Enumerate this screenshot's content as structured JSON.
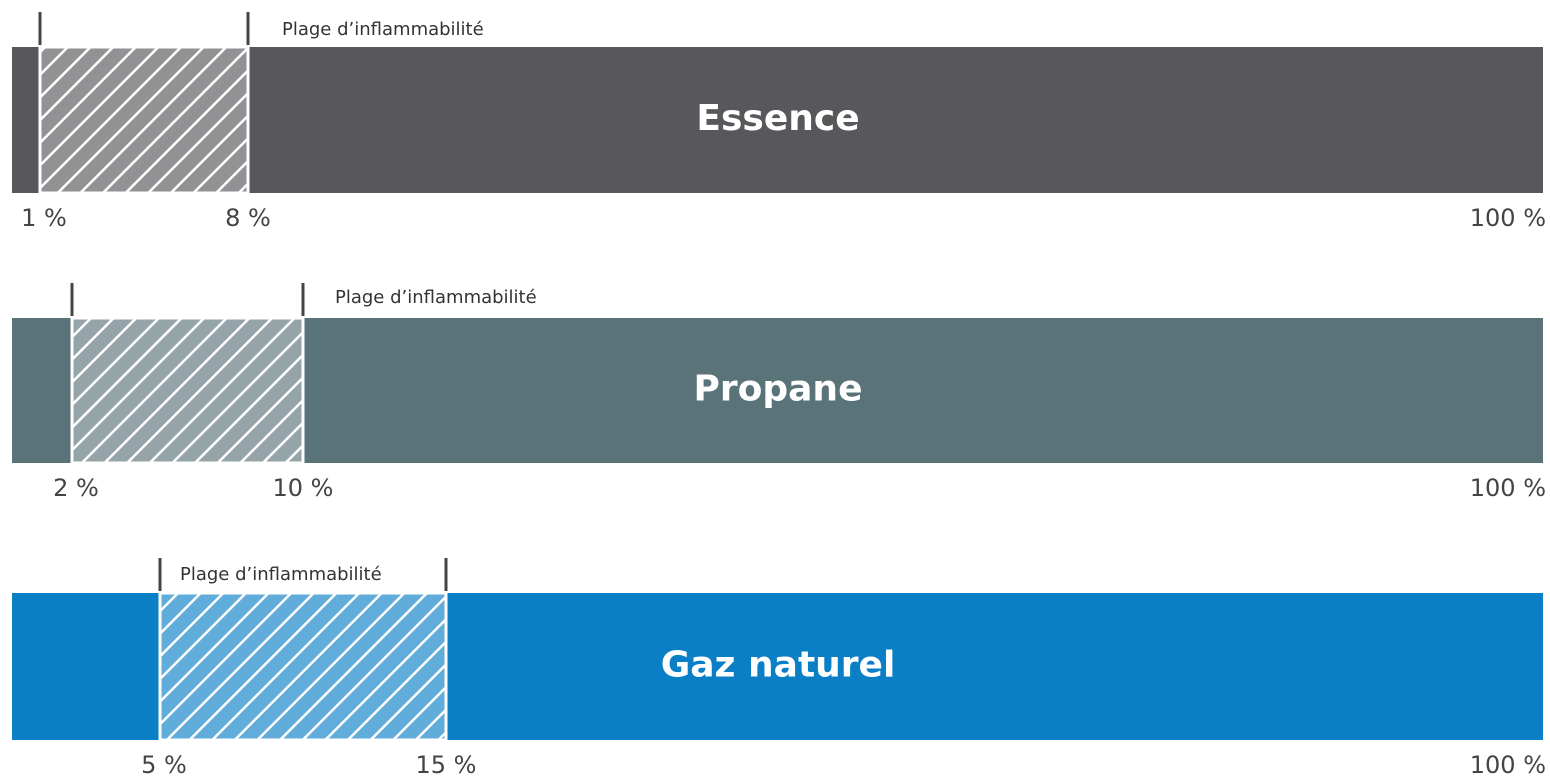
{
  "bars": [
    {
      "name": "Essence",
      "range_label": "Plage d’inflammabilité",
      "lower": "1 %",
      "upper": "8 %",
      "max": "100 %",
      "color": "#58585c"
    },
    {
      "name": "Propane",
      "range_label": "Plage d’inflammabilité",
      "lower": "2 %",
      "upper": "10 %",
      "max": "100 %",
      "color": "#5a7379"
    },
    {
      "name": "Gaz naturel",
      "range_label": "Plage d’inflammabilité",
      "lower": "5 %",
      "upper": "15 %",
      "max": "100 %",
      "color": "#0a7fc6"
    }
  ]
}
